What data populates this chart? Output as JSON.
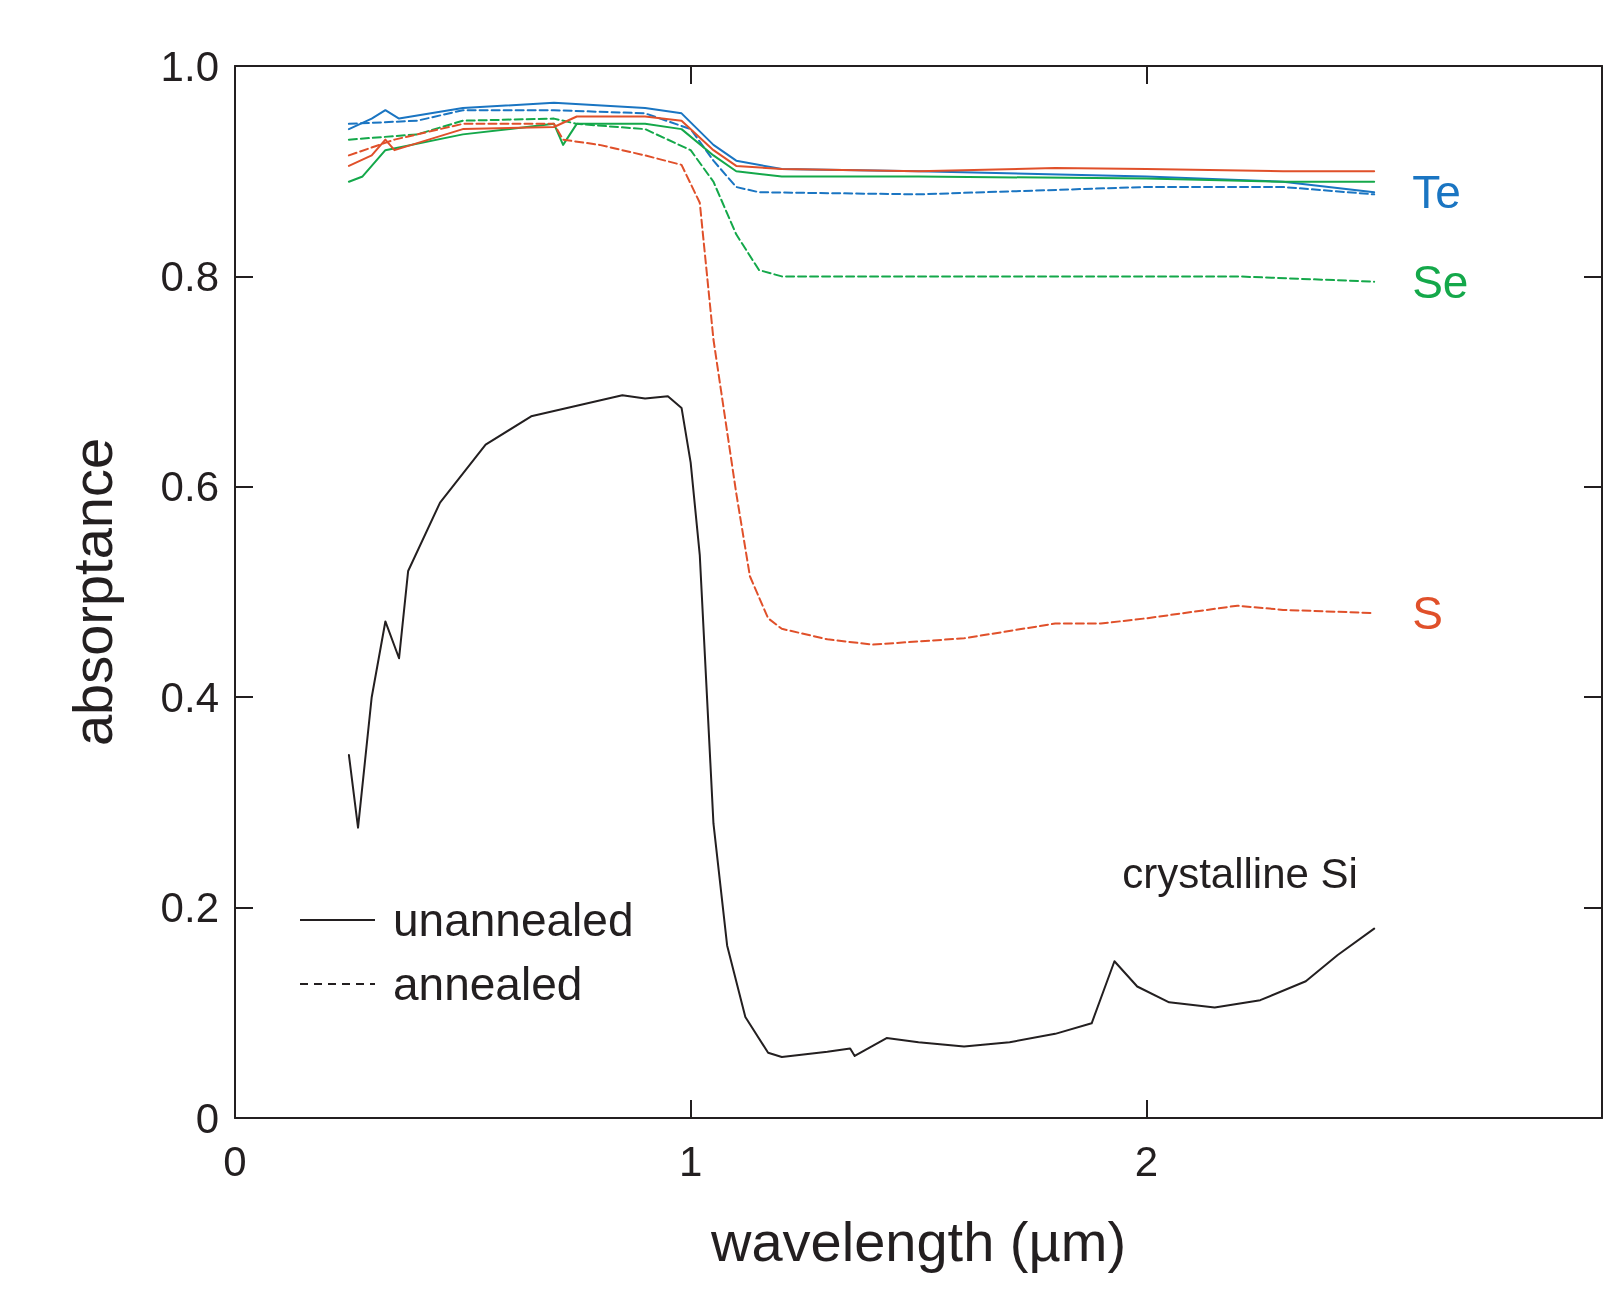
{
  "chart_data": {
    "type": "line",
    "xlabel": "wavelength (µm)",
    "ylabel": "absorptance",
    "xlim": [
      0,
      3
    ],
    "xticks": [
      0,
      1,
      2
    ],
    "ylim": [
      0,
      1
    ],
    "yticks": [
      0,
      {
        "value": 0.2,
        "label": "0.2"
      },
      {
        "value": 0.4,
        "label": "0.4"
      },
      {
        "value": 0.6,
        "label": "0.6"
      },
      {
        "value": 0.8,
        "label": "0.8"
      },
      {
        "value": 1,
        "label": "1.0"
      }
    ],
    "grid": false,
    "marker": "none",
    "annotations": [
      "unannealed",
      "annealed"
    ],
    "series": [
      {
        "name": "Te",
        "color": "#1a75c2",
        "line_style": "solid",
        "x": [
          0.25,
          0.3,
          0.33,
          0.36,
          0.5,
          0.7,
          0.9,
          0.98,
          1.05,
          1.1,
          1.2,
          1.5,
          2.0,
          2.3,
          2.5
        ],
        "values": [
          0.94,
          0.95,
          0.958,
          0.95,
          0.96,
          0.965,
          0.96,
          0.955,
          0.925,
          0.91,
          0.902,
          0.9,
          0.895,
          0.89,
          0.88
        ]
      },
      {
        "color": "#1a75c2",
        "line_style": "dashed",
        "x": [
          0.25,
          0.4,
          0.5,
          0.7,
          0.9,
          1.0,
          1.05,
          1.1,
          1.15,
          1.5,
          2.0,
          2.3,
          2.5
        ],
        "values": [
          0.945,
          0.948,
          0.958,
          0.958,
          0.955,
          0.94,
          0.91,
          0.885,
          0.88,
          0.878,
          0.885,
          0.885,
          0.878
        ]
      },
      {
        "color": "#14a84a",
        "line_style": "solid",
        "x": [
          0.25,
          0.28,
          0.33,
          0.5,
          0.7,
          0.72,
          0.75,
          0.9,
          0.98,
          1.05,
          1.1,
          1.2,
          1.5,
          2.0,
          2.3,
          2.5
        ],
        "values": [
          0.89,
          0.895,
          0.92,
          0.935,
          0.945,
          0.925,
          0.945,
          0.945,
          0.94,
          0.915,
          0.9,
          0.895,
          0.895,
          0.893,
          0.89,
          0.89
        ]
      },
      {
        "name": "Se",
        "color": "#14a84a",
        "line_style": "dashed",
        "x": [
          0.25,
          0.4,
          0.5,
          0.7,
          0.75,
          0.9,
          1.0,
          1.05,
          1.1,
          1.15,
          1.2,
          1.5,
          2.0,
          2.2,
          2.5
        ],
        "values": [
          0.93,
          0.935,
          0.948,
          0.95,
          0.945,
          0.94,
          0.92,
          0.89,
          0.84,
          0.806,
          0.8,
          0.8,
          0.8,
          0.8,
          0.795
        ]
      },
      {
        "color": "#e0502a",
        "line_style": "solid",
        "x": [
          0.25,
          0.3,
          0.33,
          0.35,
          0.5,
          0.7,
          0.75,
          0.9,
          0.98,
          1.05,
          1.1,
          1.2,
          1.5,
          1.8,
          2.0,
          2.3,
          2.5
        ],
        "values": [
          0.905,
          0.915,
          0.93,
          0.92,
          0.94,
          0.942,
          0.952,
          0.952,
          0.948,
          0.92,
          0.905,
          0.902,
          0.9,
          0.903,
          0.902,
          0.9,
          0.9
        ]
      },
      {
        "name": "S",
        "color": "#e0502a",
        "line_style": "dashed",
        "x": [
          0.25,
          0.35,
          0.5,
          0.7,
          0.72,
          0.8,
          0.9,
          0.98,
          1.02,
          1.05,
          1.1,
          1.13,
          1.17,
          1.2,
          1.3,
          1.4,
          1.6,
          1.8,
          1.9,
          2.0,
          2.2,
          2.3,
          2.5
        ],
        "values": [
          0.915,
          0.93,
          0.945,
          0.945,
          0.93,
          0.925,
          0.915,
          0.906,
          0.87,
          0.74,
          0.594,
          0.515,
          0.475,
          0.465,
          0.455,
          0.45,
          0.456,
          0.47,
          0.47,
          0.475,
          0.487,
          0.483,
          0.48
        ]
      },
      {
        "name": "crystalline Si",
        "color": "#231f20",
        "line_style": "solid",
        "x": [
          0.25,
          0.27,
          0.3,
          0.33,
          0.36,
          0.38,
          0.45,
          0.55,
          0.65,
          0.75,
          0.85,
          0.9,
          0.95,
          0.98,
          1.0,
          1.02,
          1.05,
          1.08,
          1.12,
          1.17,
          1.2,
          1.3,
          1.35,
          1.36,
          1.43,
          1.5,
          1.6,
          1.7,
          1.8,
          1.88,
          1.93,
          1.98,
          2.05,
          2.15,
          2.25,
          2.35,
          2.42,
          2.5
        ],
        "values": [
          0.345,
          0.276,
          0.4,
          0.472,
          0.437,
          0.52,
          0.585,
          0.64,
          0.667,
          0.677,
          0.687,
          0.684,
          0.686,
          0.675,
          0.623,
          0.535,
          0.28,
          0.164,
          0.096,
          0.062,
          0.058,
          0.063,
          0.066,
          0.059,
          0.076,
          0.072,
          0.068,
          0.072,
          0.08,
          0.09,
          0.149,
          0.125,
          0.11,
          0.105,
          0.112,
          0.13,
          0.155,
          0.18
        ]
      }
    ]
  }
}
